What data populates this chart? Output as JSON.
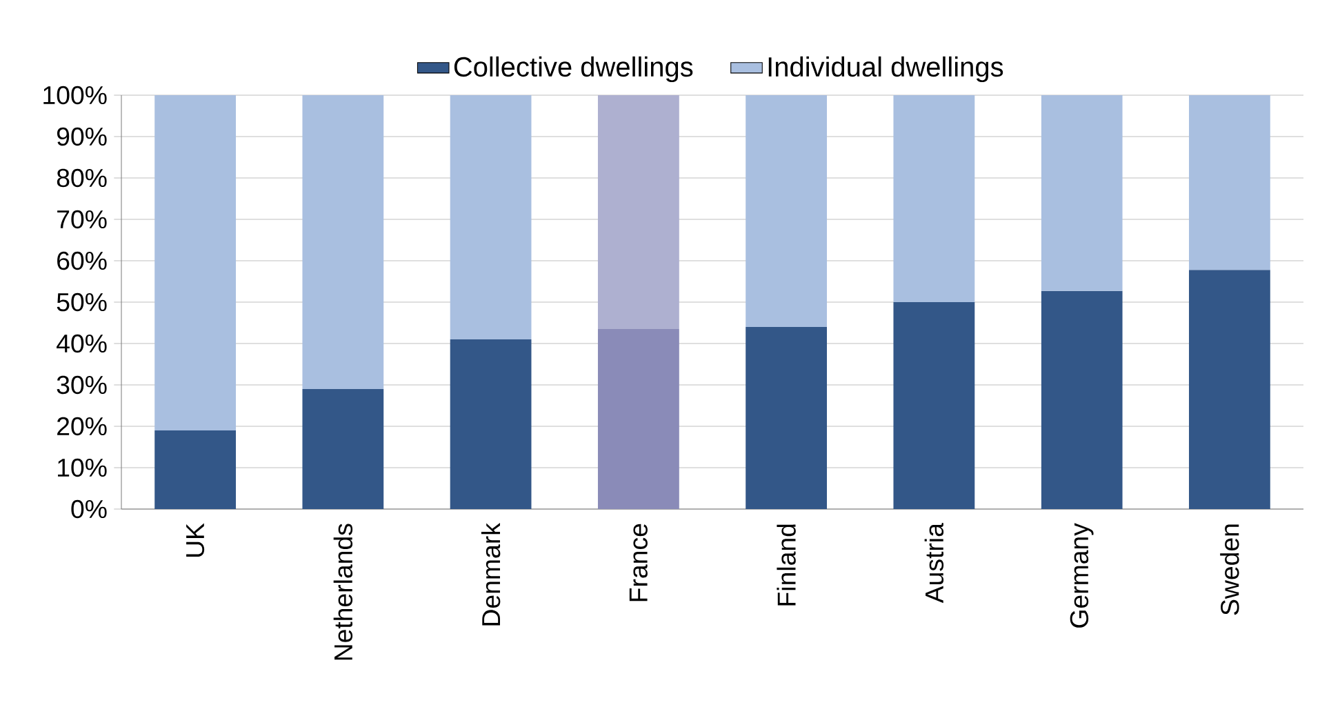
{
  "chart_data": {
    "type": "bar",
    "stacked": true,
    "grid": "y",
    "legend": "top",
    "categories": [
      "UK",
      "Netherlands",
      "Denmark",
      "France",
      "Finland",
      "Austria",
      "Germany",
      "Sweden"
    ],
    "series": [
      {
        "name": "Collective dwellings",
        "color": "#335788",
        "colors": [
          "#335788",
          "#335788",
          "#335788",
          "#8a8bb8",
          "#335788",
          "#335788",
          "#335788",
          "#335788"
        ],
        "values": [
          19,
          29,
          41,
          43.5,
          44,
          50,
          52.7,
          57.8
        ]
      },
      {
        "name": "Individual dwellings",
        "color": "#a9bfe0",
        "colors": [
          "#a9bfe0",
          "#a9bfe0",
          "#a9bfe0",
          "#aeb0d0",
          "#a9bfe0",
          "#a9bfe0",
          "#a9bfe0",
          "#a9bfe0"
        ],
        "values": [
          81,
          71,
          59,
          56.5,
          56,
          50,
          47.3,
          42.2
        ]
      }
    ],
    "ylim": [
      0,
      100
    ],
    "yticks": [
      {
        "value": 0,
        "label": "0%"
      },
      {
        "value": 10,
        "label": "10%"
      },
      {
        "value": 20,
        "label": "20%"
      },
      {
        "value": 30,
        "label": "30%"
      },
      {
        "value": 40,
        "label": "40%"
      },
      {
        "value": 50,
        "label": "50%"
      },
      {
        "value": 60,
        "label": "60%"
      },
      {
        "value": 70,
        "label": "70%"
      },
      {
        "value": 80,
        "label": "80%"
      },
      {
        "value": 90,
        "label": "90%"
      },
      {
        "value": 100,
        "label": "100%"
      }
    ]
  }
}
